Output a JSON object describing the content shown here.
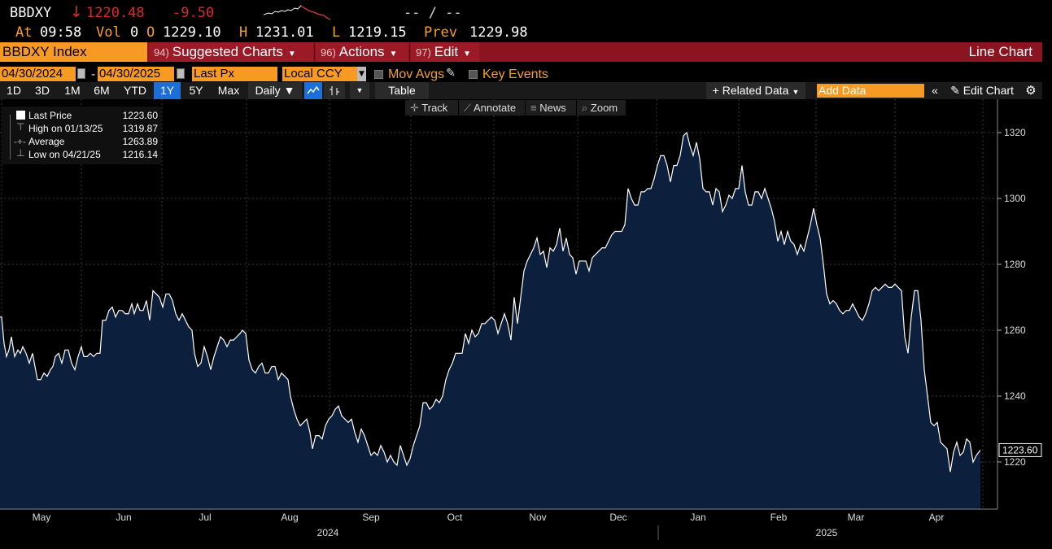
{
  "header": {
    "ticker": "BBDXY",
    "direction_arrow": "↓",
    "last": "1220.48",
    "change": "-9.50",
    "bid_ask": "-- / --",
    "at_label": "At",
    "time": "09:58",
    "vol_label": "Vol",
    "vol": "0",
    "open_label": "O",
    "open": "1229.10",
    "high_label": "H",
    "high": "1231.01",
    "low_label": "L",
    "low": "1219.15",
    "prev_label": "Prev",
    "prev": "1229.98"
  },
  "menubar": {
    "security": "BBDXY Index",
    "suggested_num": "94)",
    "suggested": "Suggested Charts",
    "actions_num": "96)",
    "actions": "Actions",
    "edit_num": "97)",
    "edit": "Edit",
    "title": "Line Chart"
  },
  "options": {
    "start_date": "04/30/2024",
    "end_date": "04/30/2025",
    "date_sep": "-",
    "field": "Last Px",
    "currency": "Local CCY",
    "mov_avgs": "Mov Avgs",
    "key_events": "Key Events"
  },
  "toolbar": {
    "ranges": [
      "1D",
      "3D",
      "1M",
      "6M",
      "YTD",
      "1Y",
      "5Y",
      "Max"
    ],
    "active_range": "1Y",
    "periodicity": "Daily ▼",
    "table": "Table",
    "related": "+ Related Data",
    "add_data_placeholder": "Add Data",
    "edit_chart": "Edit Chart"
  },
  "chart_tools": {
    "track": "Track",
    "annotate": "Annotate",
    "news": "News",
    "zoom": "Zoom"
  },
  "legend": {
    "last_label": "Last Price",
    "last_value": "1223.60",
    "high_label": "High on 01/13/25",
    "high_value": "1319.87",
    "avg_label": "Average",
    "avg_value": "1263.89",
    "low_label": "Low on 04/21/25",
    "low_value": "1216.14"
  },
  "chart_data": {
    "type": "area",
    "series": [
      {
        "name": "Last Price"
      }
    ],
    "ylim": [
      1206,
      1334
    ],
    "yticks": [
      1220,
      1240,
      1260,
      1280,
      1300,
      1320
    ],
    "x_months": [
      "May",
      "Jun",
      "Jul",
      "Aug",
      "Sep",
      "Oct",
      "Nov",
      "Dec",
      "Jan",
      "Feb",
      "Mar",
      "Apr"
    ],
    "x_years": [
      "2024",
      "2025"
    ],
    "last_value_label": "1223.60",
    "colors": {
      "fill": "#0c1f3c",
      "line": "#ffffff",
      "grid": "#3a3a3a"
    },
    "points": [
      [
        0,
        1264
      ],
      [
        2,
        1264
      ],
      [
        5,
        1256
      ],
      [
        8,
        1252
      ],
      [
        11,
        1254
      ],
      [
        14,
        1258
      ],
      [
        18,
        1252
      ],
      [
        22,
        1254
      ],
      [
        25,
        1253
      ],
      [
        28,
        1255
      ],
      [
        32,
        1253
      ],
      [
        36,
        1250
      ],
      [
        40,
        1253
      ],
      [
        43,
        1249
      ],
      [
        46,
        1245
      ],
      [
        50,
        1245
      ],
      [
        54,
        1247
      ],
      [
        58,
        1246
      ],
      [
        62,
        1248
      ],
      [
        65,
        1249
      ],
      [
        68,
        1252
      ],
      [
        72,
        1253
      ],
      [
        76,
        1250
      ],
      [
        80,
        1254
      ],
      [
        84,
        1254
      ],
      [
        88,
        1250
      ],
      [
        92,
        1248
      ],
      [
        96,
        1252
      ],
      [
        100,
        1255
      ],
      [
        103,
        1252
      ],
      [
        107,
        1252
      ],
      [
        111,
        1253
      ],
      [
        115,
        1252
      ],
      [
        119,
        1253
      ],
      [
        123,
        1253
      ],
      [
        126,
        1263
      ],
      [
        130,
        1263
      ],
      [
        134,
        1266
      ],
      [
        138,
        1267
      ],
      [
        142,
        1264
      ],
      [
        146,
        1266
      ],
      [
        150,
        1266
      ],
      [
        154,
        1265
      ],
      [
        158,
        1265
      ],
      [
        162,
        1268
      ],
      [
        165,
        1265
      ],
      [
        169,
        1268
      ],
      [
        172,
        1266
      ],
      [
        176,
        1266
      ],
      [
        180,
        1269
      ],
      [
        184,
        1263
      ],
      [
        188,
        1272
      ],
      [
        192,
        1271
      ],
      [
        196,
        1270
      ],
      [
        200,
        1267
      ],
      [
        204,
        1271
      ],
      [
        208,
        1271
      ],
      [
        212,
        1269
      ],
      [
        216,
        1265
      ],
      [
        220,
        1263
      ],
      [
        224,
        1265
      ],
      [
        228,
        1263
      ],
      [
        232,
        1261
      ],
      [
        236,
        1260
      ],
      [
        239,
        1253
      ],
      [
        243,
        1249
      ],
      [
        247,
        1250
      ],
      [
        251,
        1255
      ],
      [
        255,
        1252
      ],
      [
        259,
        1248
      ],
      [
        263,
        1252
      ],
      [
        267,
        1255
      ],
      [
        271,
        1258
      ],
      [
        275,
        1257
      ],
      [
        279,
        1255
      ],
      [
        283,
        1257
      ],
      [
        287,
        1257
      ],
      [
        291,
        1258
      ],
      [
        295,
        1259
      ],
      [
        298,
        1260
      ],
      [
        302,
        1259
      ],
      [
        306,
        1251
      ],
      [
        310,
        1248
      ],
      [
        314,
        1247
      ],
      [
        318,
        1249
      ],
      [
        322,
        1250
      ],
      [
        326,
        1247
      ],
      [
        330,
        1247
      ],
      [
        334,
        1249
      ],
      [
        338,
        1249
      ],
      [
        342,
        1245
      ],
      [
        346,
        1247
      ],
      [
        350,
        1246
      ],
      [
        354,
        1245
      ],
      [
        357,
        1240
      ],
      [
        361,
        1236
      ],
      [
        365,
        1233
      ],
      [
        369,
        1231
      ],
      [
        373,
        1232
      ],
      [
        377,
        1233
      ],
      [
        381,
        1229
      ],
      [
        384,
        1224
      ],
      [
        388,
        1228
      ],
      [
        392,
        1228
      ],
      [
        396,
        1227
      ],
      [
        400,
        1231
      ],
      [
        404,
        1233
      ],
      [
        408,
        1234
      ],
      [
        412,
        1236
      ],
      [
        416,
        1237
      ],
      [
        420,
        1234
      ],
      [
        424,
        1233
      ],
      [
        428,
        1232
      ],
      [
        432,
        1233
      ],
      [
        436,
        1229
      ],
      [
        440,
        1226
      ],
      [
        444,
        1230
      ],
      [
        448,
        1228
      ],
      [
        452,
        1225
      ],
      [
        456,
        1222
      ],
      [
        460,
        1223
      ],
      [
        464,
        1222
      ],
      [
        468,
        1225
      ],
      [
        472,
        1223
      ],
      [
        476,
        1220
      ],
      [
        480,
        1222
      ],
      [
        484,
        1220
      ],
      [
        488,
        1219
      ],
      [
        492,
        1225
      ],
      [
        496,
        1222
      ],
      [
        500,
        1219
      ],
      [
        504,
        1221
      ],
      [
        508,
        1225
      ],
      [
        512,
        1228
      ],
      [
        516,
        1231
      ],
      [
        520,
        1238
      ],
      [
        524,
        1238
      ],
      [
        528,
        1236
      ],
      [
        532,
        1237
      ],
      [
        536,
        1239
      ],
      [
        540,
        1238
      ],
      [
        544,
        1240
      ],
      [
        548,
        1245
      ],
      [
        552,
        1248
      ],
      [
        556,
        1250
      ],
      [
        560,
        1253
      ],
      [
        564,
        1253
      ],
      [
        568,
        1253
      ],
      [
        572,
        1259
      ],
      [
        576,
        1256
      ],
      [
        580,
        1260
      ],
      [
        584,
        1258
      ],
      [
        588,
        1259
      ],
      [
        592,
        1262
      ],
      [
        596,
        1262
      ],
      [
        600,
        1263
      ],
      [
        604,
        1264
      ],
      [
        608,
        1263
      ],
      [
        612,
        1259
      ],
      [
        616,
        1262
      ],
      [
        620,
        1265
      ],
      [
        624,
        1262
      ],
      [
        628,
        1257
      ],
      [
        632,
        1270
      ],
      [
        636,
        1262
      ],
      [
        640,
        1270
      ],
      [
        644,
        1278
      ],
      [
        648,
        1281
      ],
      [
        652,
        1283
      ],
      [
        656,
        1285
      ],
      [
        660,
        1288
      ],
      [
        664,
        1283
      ],
      [
        668,
        1284
      ],
      [
        672,
        1279
      ],
      [
        676,
        1285
      ],
      [
        680,
        1284
      ],
      [
        684,
        1286
      ],
      [
        688,
        1291
      ],
      [
        692,
        1284
      ],
      [
        696,
        1288
      ],
      [
        700,
        1283
      ],
      [
        704,
        1282
      ],
      [
        708,
        1277
      ],
      [
        712,
        1281
      ],
      [
        716,
        1281
      ],
      [
        720,
        1281
      ],
      [
        724,
        1278
      ],
      [
        728,
        1282
      ],
      [
        732,
        1283
      ],
      [
        736,
        1284
      ],
      [
        740,
        1285
      ],
      [
        744,
        1285
      ],
      [
        748,
        1287
      ],
      [
        752,
        1289
      ],
      [
        756,
        1290
      ],
      [
        760,
        1290
      ],
      [
        764,
        1290
      ],
      [
        768,
        1292
      ],
      [
        772,
        1303
      ],
      [
        776,
        1300
      ],
      [
        780,
        1298
      ],
      [
        784,
        1298
      ],
      [
        788,
        1302
      ],
      [
        792,
        1302
      ],
      [
        796,
        1303
      ],
      [
        800,
        1303
      ],
      [
        804,
        1306
      ],
      [
        808,
        1310
      ],
      [
        812,
        1313
      ],
      [
        816,
        1313
      ],
      [
        820,
        1310
      ],
      [
        824,
        1305
      ],
      [
        828,
        1310
      ],
      [
        832,
        1310
      ],
      [
        836,
        1313
      ],
      [
        840,
        1319
      ],
      [
        844,
        1320
      ],
      [
        848,
        1316
      ],
      [
        852,
        1313
      ],
      [
        856,
        1317
      ],
      [
        860,
        1312
      ],
      [
        864,
        1303
      ],
      [
        868,
        1302
      ],
      [
        872,
        1302
      ],
      [
        876,
        1298
      ],
      [
        880,
        1303
      ],
      [
        884,
        1302
      ],
      [
        888,
        1296
      ],
      [
        892,
        1298
      ],
      [
        896,
        1301
      ],
      [
        900,
        1300
      ],
      [
        904,
        1303
      ],
      [
        908,
        1303
      ],
      [
        912,
        1310
      ],
      [
        916,
        1302
      ],
      [
        920,
        1298
      ],
      [
        924,
        1298
      ],
      [
        928,
        1302
      ],
      [
        932,
        1302
      ],
      [
        936,
        1300
      ],
      [
        940,
        1303
      ],
      [
        944,
        1300
      ],
      [
        948,
        1297
      ],
      [
        952,
        1293
      ],
      [
        956,
        1287
      ],
      [
        960,
        1290
      ],
      [
        964,
        1286
      ],
      [
        968,
        1290
      ],
      [
        972,
        1287
      ],
      [
        976,
        1286
      ],
      [
        980,
        1283
      ],
      [
        984,
        1286
      ],
      [
        988,
        1284
      ],
      [
        992,
        1288
      ],
      [
        996,
        1292
      ],
      [
        1000,
        1297
      ],
      [
        1004,
        1292
      ],
      [
        1008,
        1288
      ],
      [
        1012,
        1280
      ],
      [
        1016,
        1271
      ],
      [
        1020,
        1268
      ],
      [
        1024,
        1269
      ],
      [
        1028,
        1268
      ],
      [
        1032,
        1266
      ],
      [
        1036,
        1265
      ],
      [
        1040,
        1266
      ],
      [
        1044,
        1266
      ],
      [
        1048,
        1268
      ],
      [
        1052,
        1266
      ],
      [
        1056,
        1264
      ],
      [
        1060,
        1263
      ],
      [
        1064,
        1265
      ],
      [
        1068,
        1268
      ],
      [
        1072,
        1272
      ],
      [
        1076,
        1273
      ],
      [
        1080,
        1272
      ],
      [
        1084,
        1273
      ],
      [
        1088,
        1274
      ],
      [
        1092,
        1273
      ],
      [
        1096,
        1273
      ],
      [
        1100,
        1274
      ],
      [
        1104,
        1273
      ],
      [
        1108,
        1272
      ],
      [
        1112,
        1258
      ],
      [
        1116,
        1253
      ],
      [
        1120,
        1264
      ],
      [
        1124,
        1272
      ],
      [
        1128,
        1272
      ],
      [
        1132,
        1263
      ],
      [
        1136,
        1248
      ],
      [
        1140,
        1240
      ],
      [
        1144,
        1232
      ],
      [
        1148,
        1231
      ],
      [
        1152,
        1232
      ],
      [
        1156,
        1226
      ],
      [
        1160,
        1225
      ],
      [
        1164,
        1224
      ],
      [
        1168,
        1217
      ],
      [
        1172,
        1223
      ],
      [
        1176,
        1226
      ],
      [
        1180,
        1222
      ],
      [
        1184,
        1223
      ],
      [
        1188,
        1227
      ],
      [
        1192,
        1226
      ],
      [
        1196,
        1220
      ],
      [
        1200,
        1222
      ],
      [
        1205,
        1223.6
      ]
    ]
  }
}
